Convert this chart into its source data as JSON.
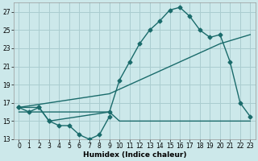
{
  "xlabel": "Humidex (Indice chaleur)",
  "bg_color": "#cce8ea",
  "grid_color": "#aacdd0",
  "line_color": "#1a6b6b",
  "xmin": -0.5,
  "xmax": 23.5,
  "ymin": 13,
  "ymax": 28,
  "yticks": [
    13,
    15,
    17,
    19,
    21,
    23,
    25,
    27
  ],
  "xticks": [
    0,
    1,
    2,
    3,
    4,
    5,
    6,
    7,
    8,
    9,
    10,
    11,
    12,
    13,
    14,
    15,
    16,
    17,
    18,
    19,
    20,
    21,
    22,
    23
  ],
  "flat_x": [
    0,
    1,
    2,
    3,
    4,
    5,
    6,
    7,
    8,
    9,
    10,
    11,
    12,
    13,
    14,
    15,
    16,
    17,
    18,
    19,
    20,
    21,
    22,
    23
  ],
  "flat_y": [
    16,
    16,
    16,
    16,
    16,
    16,
    16,
    16,
    16,
    16,
    15,
    15,
    15,
    15,
    15,
    15,
    15,
    15,
    15,
    15,
    15,
    15,
    15,
    15
  ],
  "zigzag_x": [
    0,
    1,
    2,
    3,
    4,
    5,
    6,
    7,
    8,
    9
  ],
  "zigzag_y": [
    16.5,
    16.0,
    16.5,
    15.0,
    14.5,
    14.5,
    13.5,
    13.0,
    13.5,
    15.5
  ],
  "diag_x": [
    0,
    9,
    10,
    11,
    12,
    13,
    14,
    15,
    16,
    17,
    18,
    19,
    20,
    23
  ],
  "diag_y": [
    16.5,
    18.0,
    18.5,
    19.0,
    19.5,
    20.0,
    20.5,
    21.0,
    21.5,
    22.0,
    22.5,
    23.0,
    23.5,
    24.5
  ],
  "curve_x": [
    0,
    2,
    3,
    9,
    10,
    11,
    12,
    13,
    14,
    15,
    16,
    17,
    18,
    19,
    20,
    21,
    22,
    23
  ],
  "curve_y": [
    16.5,
    16.5,
    15.0,
    16.0,
    19.5,
    21.5,
    23.5,
    25.0,
    26.0,
    27.2,
    27.5,
    26.5,
    25.0,
    24.2,
    24.5,
    21.5,
    17.0,
    15.5
  ]
}
